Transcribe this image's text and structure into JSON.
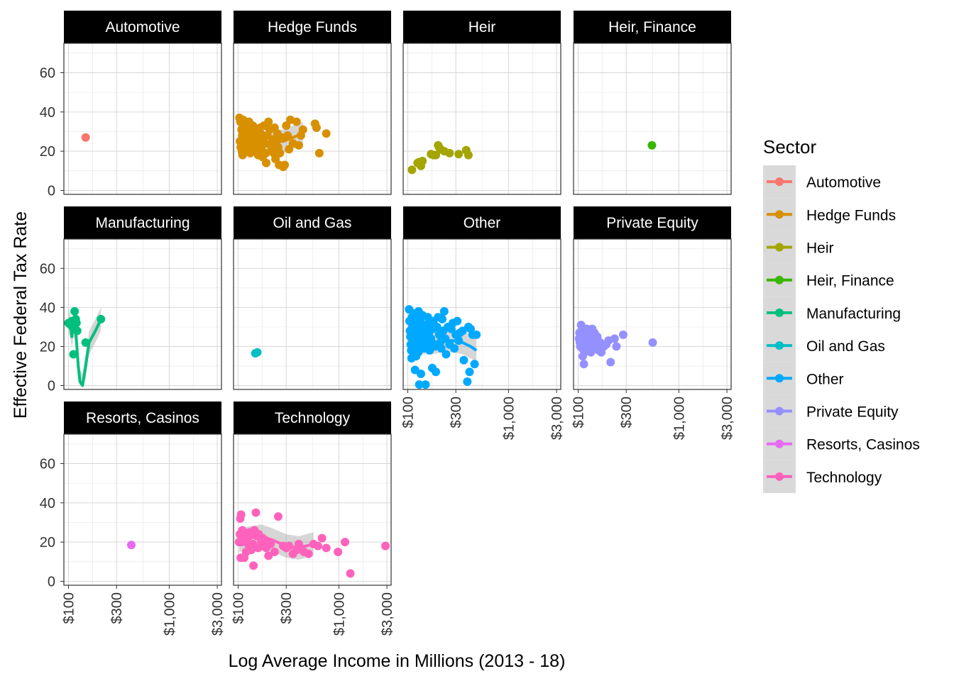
{
  "chart_data": {
    "type": "scatter",
    "title": "",
    "xlabel": "Log Average Income in Millions (2013 - 18)",
    "ylabel": "Effective Federal Tax Rate",
    "x_scale": "log10",
    "xlim": [
      90,
      3300
    ],
    "ylim": [
      -2,
      75
    ],
    "x_ticks": [
      100,
      300,
      1000,
      3000
    ],
    "x_tick_labels": [
      "$100",
      "$300",
      "$1,000",
      "$3,000"
    ],
    "y_ticks": [
      0,
      20,
      40,
      60
    ],
    "y_tick_labels": [
      "0",
      "20",
      "40",
      "60"
    ],
    "legend_title": "Sector",
    "legend_position": "right",
    "grid": true,
    "facets": [
      {
        "name": "Automotive",
        "color": "#F8766D",
        "points": [
          [
            148,
            27
          ]
        ],
        "smooth": null
      },
      {
        "name": "Hedge Funds",
        "color": "#D89000",
        "points": [
          [
            103,
            37
          ],
          [
            105,
            35
          ],
          [
            108,
            31
          ],
          [
            110,
            28
          ],
          [
            112,
            36
          ],
          [
            115,
            30
          ],
          [
            104,
            25
          ],
          [
            106,
            22
          ],
          [
            109,
            20
          ],
          [
            111,
            18
          ],
          [
            113,
            26
          ],
          [
            116,
            24
          ],
          [
            118,
            33
          ],
          [
            120,
            27
          ],
          [
            122,
            21
          ],
          [
            125,
            29
          ],
          [
            128,
            35
          ],
          [
            130,
            23
          ],
          [
            132,
            19
          ],
          [
            135,
            31
          ],
          [
            138,
            26
          ],
          [
            140,
            33
          ],
          [
            142,
            28
          ],
          [
            145,
            24
          ],
          [
            148,
            22
          ],
          [
            150,
            20
          ],
          [
            152,
            30
          ],
          [
            155,
            26
          ],
          [
            158,
            18
          ],
          [
            160,
            25
          ],
          [
            165,
            32
          ],
          [
            168,
            29
          ],
          [
            170,
            21
          ],
          [
            175,
            17
          ],
          [
            178,
            27
          ],
          [
            180,
            33
          ],
          [
            185,
            24
          ],
          [
            188,
            19
          ],
          [
            190,
            14
          ],
          [
            195,
            28
          ],
          [
            200,
            35
          ],
          [
            205,
            31
          ],
          [
            210,
            23
          ],
          [
            215,
            20
          ],
          [
            220,
            26
          ],
          [
            225,
            19
          ],
          [
            230,
            32
          ],
          [
            235,
            16
          ],
          [
            240,
            25
          ],
          [
            245,
            29
          ],
          [
            250,
            22
          ],
          [
            255,
            13
          ],
          [
            260,
            19
          ],
          [
            270,
            27
          ],
          [
            280,
            12
          ],
          [
            290,
            13
          ],
          [
            300,
            33
          ],
          [
            310,
            28
          ],
          [
            320,
            21
          ],
          [
            330,
            36
          ],
          [
            350,
            24
          ],
          [
            380,
            35
          ],
          [
            400,
            23
          ],
          [
            420,
            28
          ],
          [
            440,
            31
          ],
          [
            580,
            34
          ],
          [
            600,
            32
          ],
          [
            640,
            19
          ],
          [
            750,
            29
          ]
        ],
        "smooth": [
          [
            103,
            27
          ],
          [
            120,
            26
          ],
          [
            150,
            27
          ],
          [
            180,
            24
          ],
          [
            220,
            25
          ],
          [
            280,
            25
          ],
          [
            350,
            27
          ],
          [
            440,
            29
          ]
        ]
      },
      {
        "name": "Heir",
        "color": "#A3A500",
        "points": [
          [
            110,
            10.5
          ],
          [
            125,
            14
          ],
          [
            130,
            14.5
          ],
          [
            135,
            12.5
          ],
          [
            140,
            15
          ],
          [
            170,
            18.5
          ],
          [
            180,
            18
          ],
          [
            190,
            18
          ],
          [
            200,
            23
          ],
          [
            205,
            22
          ],
          [
            210,
            21
          ],
          [
            230,
            20
          ],
          [
            260,
            19
          ],
          [
            320,
            18.5
          ],
          [
            380,
            20.5
          ],
          [
            400,
            18
          ]
        ],
        "smooth": null
      },
      {
        "name": "Heir, Finance",
        "color": "#39B600",
        "points": [
          [
            540,
            23
          ]
        ],
        "smooth": null
      },
      {
        "name": "Manufacturing",
        "color": "#00BF7D",
        "points": [
          [
            100,
            32
          ],
          [
            105,
            31
          ],
          [
            108,
            33
          ],
          [
            110,
            30
          ],
          [
            112,
            16
          ],
          [
            115,
            38
          ],
          [
            118,
            34
          ],
          [
            120,
            32
          ],
          [
            122,
            28
          ],
          [
            148,
            22
          ],
          [
            210,
            34
          ]
        ],
        "smooth": [
          [
            100,
            33
          ],
          [
            105,
            30
          ],
          [
            108,
            25
          ],
          [
            112,
            31
          ],
          [
            118,
            28
          ],
          [
            125,
            10
          ],
          [
            130,
            2
          ],
          [
            138,
            0
          ],
          [
            148,
            10
          ],
          [
            160,
            22
          ],
          [
            185,
            28
          ],
          [
            210,
            34
          ]
        ]
      },
      {
        "name": "Oil and Gas",
        "color": "#00BFC4",
        "points": [
          [
            148,
            16.5
          ],
          [
            155,
            17
          ]
        ],
        "smooth": null
      },
      {
        "name": "Other",
        "color": "#00A9FF",
        "points": [
          [
            103,
            39
          ],
          [
            104,
            33
          ],
          [
            105,
            28
          ],
          [
            106,
            25
          ],
          [
            107,
            21
          ],
          [
            108,
            18
          ],
          [
            109,
            14
          ],
          [
            110,
            35
          ],
          [
            111,
            30
          ],
          [
            112,
            23
          ],
          [
            113,
            20
          ],
          [
            114,
            16
          ],
          [
            115,
            37
          ],
          [
            116,
            32
          ],
          [
            117,
            27
          ],
          [
            118,
            8
          ],
          [
            119,
            22
          ],
          [
            120,
            19
          ],
          [
            121,
            15
          ],
          [
            122,
            34
          ],
          [
            123,
            26
          ],
          [
            124,
            29
          ],
          [
            125,
            24
          ],
          [
            126,
            31
          ],
          [
            127,
            17
          ],
          [
            128,
            38
          ],
          [
            130,
            0.5
          ],
          [
            132,
            21
          ],
          [
            133,
            33
          ],
          [
            135,
            6
          ],
          [
            136,
            26
          ],
          [
            138,
            28
          ],
          [
            140,
            36
          ],
          [
            142,
            22
          ],
          [
            144,
            19
          ],
          [
            146,
            31
          ],
          [
            148,
            25
          ],
          [
            150,
            0.5
          ],
          [
            152,
            30
          ],
          [
            155,
            23
          ],
          [
            158,
            35
          ],
          [
            160,
            21
          ],
          [
            162,
            27
          ],
          [
            165,
            18
          ],
          [
            168,
            32
          ],
          [
            170,
            24
          ],
          [
            175,
            9
          ],
          [
            178,
            29
          ],
          [
            180,
            33
          ],
          [
            185,
            20
          ],
          [
            190,
            7
          ],
          [
            195,
            30
          ],
          [
            200,
            35
          ],
          [
            205,
            26
          ],
          [
            210,
            22
          ],
          [
            215,
            19
          ],
          [
            220,
            34
          ],
          [
            225,
            28
          ],
          [
            230,
            38
          ],
          [
            235,
            24
          ],
          [
            240,
            16
          ],
          [
            250,
            30
          ],
          [
            260,
            21
          ],
          [
            270,
            29
          ],
          [
            280,
            32
          ],
          [
            290,
            19
          ],
          [
            300,
            26
          ],
          [
            310,
            33
          ],
          [
            320,
            23
          ],
          [
            330,
            27
          ],
          [
            350,
            28
          ],
          [
            360,
            13
          ],
          [
            390,
            2
          ],
          [
            400,
            30
          ],
          [
            410,
            7
          ],
          [
            420,
            29
          ],
          [
            440,
            26
          ],
          [
            460,
            11
          ],
          [
            480,
            26
          ]
        ],
        "smooth": [
          [
            103,
            23
          ],
          [
            130,
            22
          ],
          [
            170,
            22
          ],
          [
            220,
            23
          ],
          [
            280,
            23
          ],
          [
            350,
            22
          ],
          [
            420,
            20
          ],
          [
            480,
            18
          ]
        ]
      },
      {
        "name": "Private Equity",
        "color": "#9590FF",
        "points": [
          [
            102,
            24
          ],
          [
            103,
            27
          ],
          [
            104,
            22
          ],
          [
            105,
            20
          ],
          [
            106,
            26
          ],
          [
            107,
            31
          ],
          [
            108,
            28
          ],
          [
            109,
            23
          ],
          [
            110,
            19
          ],
          [
            111,
            15
          ],
          [
            112,
            25
          ],
          [
            113,
            21
          ],
          [
            114,
            11
          ],
          [
            115,
            18
          ],
          [
            116,
            17
          ],
          [
            117,
            24
          ],
          [
            118,
            27
          ],
          [
            120,
            22
          ],
          [
            122,
            29
          ],
          [
            124,
            20
          ],
          [
            126,
            23
          ],
          [
            128,
            18
          ],
          [
            130,
            26
          ],
          [
            132,
            21
          ],
          [
            134,
            17
          ],
          [
            136,
            24
          ],
          [
            138,
            29
          ],
          [
            140,
            22
          ],
          [
            142,
            19
          ],
          [
            145,
            27
          ],
          [
            148,
            20
          ],
          [
            150,
            23
          ],
          [
            155,
            25
          ],
          [
            160,
            18
          ],
          [
            165,
            22
          ],
          [
            170,
            17
          ],
          [
            180,
            20
          ],
          [
            190,
            21
          ],
          [
            200,
            23
          ],
          [
            210,
            12
          ],
          [
            230,
            24
          ],
          [
            240,
            20
          ],
          [
            280,
            26
          ],
          [
            550,
            22
          ]
        ],
        "smooth": null
      },
      {
        "name": "Resorts, Casinos",
        "color": "#E76BF3",
        "points": [
          [
            420,
            18.5
          ]
        ],
        "smooth": null
      },
      {
        "name": "Technology",
        "color": "#FF62BC",
        "points": [
          [
            102,
            20
          ],
          [
            104,
            24
          ],
          [
            105,
            32
          ],
          [
            106,
            12
          ],
          [
            107,
            34
          ],
          [
            108,
            20
          ],
          [
            110,
            26
          ],
          [
            112,
            22
          ],
          [
            115,
            12
          ],
          [
            118,
            24
          ],
          [
            120,
            15
          ],
          [
            125,
            19
          ],
          [
            128,
            23
          ],
          [
            130,
            25
          ],
          [
            135,
            16
          ],
          [
            140,
            19
          ],
          [
            142,
            8
          ],
          [
            145,
            26
          ],
          [
            150,
            35
          ],
          [
            152,
            24
          ],
          [
            155,
            23
          ],
          [
            158,
            17
          ],
          [
            160,
            24
          ],
          [
            170,
            20
          ],
          [
            175,
            22
          ],
          [
            180,
            18
          ],
          [
            185,
            21
          ],
          [
            190,
            17
          ],
          [
            200,
            13
          ],
          [
            210,
            19
          ],
          [
            230,
            15
          ],
          [
            250,
            33
          ],
          [
            280,
            18
          ],
          [
            300,
            17
          ],
          [
            320,
            18
          ],
          [
            350,
            14
          ],
          [
            380,
            16
          ],
          [
            400,
            19
          ],
          [
            420,
            17
          ],
          [
            450,
            15
          ],
          [
            500,
            14
          ],
          [
            560,
            19
          ],
          [
            620,
            18
          ],
          [
            680,
            22
          ],
          [
            750,
            17
          ],
          [
            980,
            15
          ],
          [
            1150,
            20
          ],
          [
            1300,
            4
          ],
          [
            2900,
            18
          ]
        ],
        "smooth": [
          [
            102,
            21
          ],
          [
            130,
            22
          ],
          [
            170,
            23
          ],
          [
            220,
            21
          ],
          [
            300,
            18
          ],
          [
            400,
            17
          ],
          [
            560,
            19
          ]
        ]
      }
    ]
  }
}
